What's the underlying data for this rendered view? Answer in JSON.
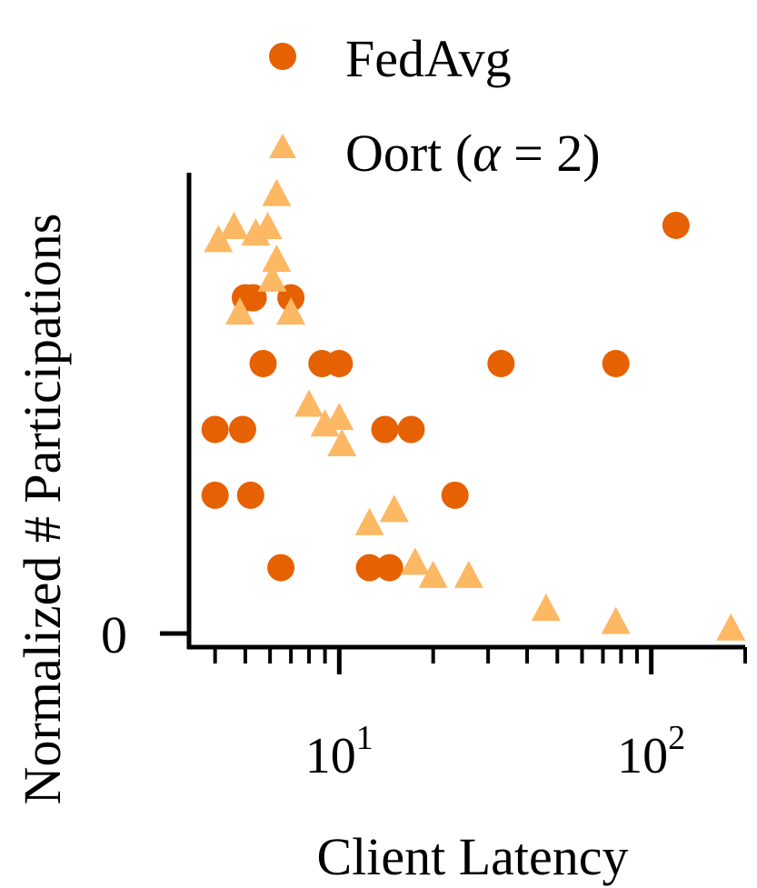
{
  "chart_data": {
    "type": "scatter",
    "xlabel": "Client Latency",
    "ylabel": "Normalized # Participations",
    "x_scale": "log",
    "xlim": [
      3.3,
      200
    ],
    "ylim": [
      -0.015,
      0.7
    ],
    "x_ticks": [
      {
        "value": 10,
        "base": "10",
        "exp": "1"
      },
      {
        "value": 100,
        "base": "10",
        "exp": "2"
      }
    ],
    "y_ticks": [
      {
        "value": 0,
        "label": "0"
      }
    ],
    "legend": {
      "placement": "top",
      "entries": [
        {
          "name": "FedAvg",
          "marker": "circle",
          "color": "#E66101"
        },
        {
          "name_prefix": "Oort (",
          "name_greek": "α",
          "name_suffix": " = 2)",
          "marker": "triangle",
          "color": "#FDB863"
        }
      ]
    },
    "series": [
      {
        "name": "FedAvg",
        "marker": "circle",
        "color": "#E66101",
        "points": [
          {
            "x": 4.0,
            "y": 0.21
          },
          {
            "x": 4.0,
            "y": 0.31
          },
          {
            "x": 4.9,
            "y": 0.31
          },
          {
            "x": 5.2,
            "y": 0.21
          },
          {
            "x": 5.0,
            "y": 0.51
          },
          {
            "x": 5.3,
            "y": 0.51
          },
          {
            "x": 5.7,
            "y": 0.41
          },
          {
            "x": 6.5,
            "y": 0.1
          },
          {
            "x": 7.0,
            "y": 0.51
          },
          {
            "x": 8.8,
            "y": 0.41
          },
          {
            "x": 10.0,
            "y": 0.41
          },
          {
            "x": 12.5,
            "y": 0.1
          },
          {
            "x": 14.0,
            "y": 0.31
          },
          {
            "x": 14.5,
            "y": 0.1
          },
          {
            "x": 17.0,
            "y": 0.31
          },
          {
            "x": 23.5,
            "y": 0.21
          },
          {
            "x": 33.0,
            "y": 0.41
          },
          {
            "x": 77.0,
            "y": 0.41
          },
          {
            "x": 120.0,
            "y": 0.62
          }
        ]
      },
      {
        "name": "Oort (α = 2)",
        "marker": "triangle",
        "color": "#FDB863",
        "points": [
          {
            "x": 4.1,
            "y": 0.6
          },
          {
            "x": 4.6,
            "y": 0.62
          },
          {
            "x": 4.8,
            "y": 0.49
          },
          {
            "x": 5.4,
            "y": 0.61
          },
          {
            "x": 5.9,
            "y": 0.62
          },
          {
            "x": 6.1,
            "y": 0.54
          },
          {
            "x": 6.3,
            "y": 0.57
          },
          {
            "x": 6.3,
            "y": 0.67
          },
          {
            "x": 7.0,
            "y": 0.49
          },
          {
            "x": 8.0,
            "y": 0.35
          },
          {
            "x": 9.0,
            "y": 0.32
          },
          {
            "x": 10.0,
            "y": 0.33
          },
          {
            "x": 10.2,
            "y": 0.29
          },
          {
            "x": 12.5,
            "y": 0.17
          },
          {
            "x": 15.0,
            "y": 0.19
          },
          {
            "x": 17.5,
            "y": 0.11
          },
          {
            "x": 20.0,
            "y": 0.09
          },
          {
            "x": 26.0,
            "y": 0.09
          },
          {
            "x": 46.0,
            "y": 0.04
          },
          {
            "x": 77.0,
            "y": 0.02
          },
          {
            "x": 180.0,
            "y": 0.01
          }
        ]
      }
    ]
  }
}
